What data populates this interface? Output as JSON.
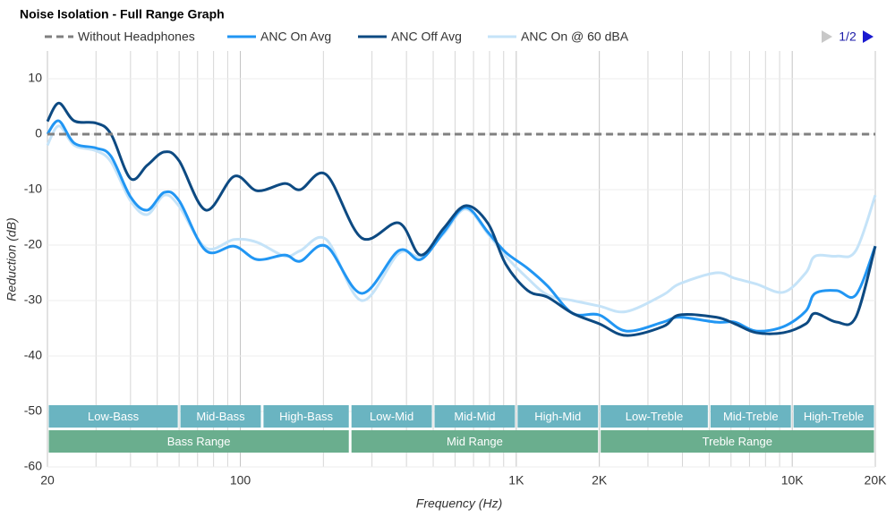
{
  "chart_data": {
    "type": "line",
    "title": "Noise Isolation - Full Range Graph",
    "x_label": "Frequency (Hz)",
    "y_label": "Reduction (dB)",
    "legend_page": "1/2",
    "x_scale": "log",
    "xlim": [
      20,
      20000
    ],
    "ylim": [
      -60,
      15
    ],
    "xticks": [
      20,
      100,
      {
        "value": 1000,
        "label": "1K"
      },
      {
        "value": 2000,
        "label": "2K"
      },
      {
        "value": 10000,
        "label": "10K"
      },
      {
        "value": 20000,
        "label": "20K"
      }
    ],
    "xgrid_minor": [
      30,
      40,
      50,
      60,
      70,
      80,
      90,
      200,
      300,
      400,
      500,
      600,
      700,
      800,
      900,
      3000,
      4000,
      5000,
      6000,
      7000,
      8000,
      9000
    ],
    "yticks": [
      -60,
      -50,
      -40,
      -30,
      -20,
      -10,
      0,
      10
    ],
    "x": [
      20,
      22,
      25,
      30,
      34,
      40,
      46,
      53,
      60,
      75,
      95,
      115,
      145,
      165,
      205,
      275,
      375,
      450,
      545,
      655,
      790,
      915,
      1100,
      1300,
      1600,
      2000,
      2500,
      3400,
      3900,
      5300,
      6200,
      7400,
      9300,
      11200,
      12100,
      14500,
      17000,
      20000
    ],
    "series": [
      {
        "name": "Without Headphones",
        "color": "#808080",
        "dashed": true,
        "values": [
          0,
          0,
          0,
          0,
          0,
          0,
          0,
          0,
          0,
          0,
          0,
          0,
          0,
          0,
          0,
          0,
          0,
          0,
          0,
          0,
          0,
          0,
          0,
          0,
          0,
          0,
          0,
          0,
          0,
          0,
          0,
          0,
          0,
          0,
          0,
          0,
          0,
          0
        ]
      },
      {
        "name": "ANC On Avg",
        "color": "#2196f3",
        "dashed": false,
        "values": [
          0,
          2.4,
          -1.6,
          -2.5,
          -4,
          -11.3,
          -13.7,
          -10.5,
          -12,
          -21,
          -20.2,
          -22.6,
          -21.8,
          -22.9,
          -20.2,
          -28.7,
          -21,
          -22.6,
          -17.7,
          -13.2,
          -17.7,
          -21.3,
          -24.2,
          -27.4,
          -32.3,
          -32.6,
          -35.5,
          -33.9,
          -33,
          -33.9,
          -33.9,
          -35.5,
          -34.7,
          -31.9,
          -28.7,
          -28.2,
          -29,
          -20.2
        ]
      },
      {
        "name": "ANC Off Avg",
        "color": "#0d4a82",
        "dashed": false,
        "values": [
          2.3,
          5.6,
          2.4,
          2,
          0,
          -8,
          -5.6,
          -3.2,
          -4.8,
          -13.7,
          -7.6,
          -10.2,
          -8.9,
          -10,
          -7.3,
          -18.7,
          -16,
          -21.8,
          -17,
          -12.9,
          -16.1,
          -23.4,
          -28.2,
          -29.4,
          -32.3,
          -34.2,
          -36.3,
          -34.7,
          -32.6,
          -33,
          -34.2,
          -35.8,
          -35.8,
          -34.2,
          -32.3,
          -33.9,
          -33,
          -20.2
        ]
      },
      {
        "name": "ANC On @ 60 dBA",
        "color": "#c5e3f8",
        "dashed": false,
        "values": [
          -2,
          1.5,
          -2,
          -3,
          -5,
          -12,
          -14.5,
          -11,
          -13,
          -20.5,
          -19,
          -19.5,
          -22,
          -21,
          -19,
          -30,
          -21.5,
          -22,
          -18,
          -13.5,
          -18,
          -22,
          -26,
          -29,
          -30,
          -31,
          -32,
          -29,
          -27,
          -25,
          -26,
          -27,
          -28.5,
          -25,
          -22,
          -22,
          -21,
          -11
        ]
      }
    ],
    "bands": [
      {
        "label": "Low-Bass",
        "from": 20,
        "to": 60
      },
      {
        "label": "Mid-Bass",
        "from": 60,
        "to": 120
      },
      {
        "label": "High-Bass",
        "from": 120,
        "to": 250
      },
      {
        "label": "Low-Mid",
        "from": 250,
        "to": 500
      },
      {
        "label": "Mid-Mid",
        "from": 500,
        "to": 1000
      },
      {
        "label": "High-Mid",
        "from": 1000,
        "to": 2000
      },
      {
        "label": "Low-Treble",
        "from": 2000,
        "to": 5000
      },
      {
        "label": "Mid-Treble",
        "from": 5000,
        "to": 10000
      },
      {
        "label": "High-Treble",
        "from": 10000,
        "to": 20000
      }
    ],
    "ranges": [
      {
        "label": "Bass Range",
        "from": 20,
        "to": 250
      },
      {
        "label": "Mid Range",
        "from": 250,
        "to": 2000
      },
      {
        "label": "Treble Range",
        "from": 2000,
        "to": 20000
      }
    ],
    "band_color": "#6ab4c1",
    "range_color": "#6aae8e"
  }
}
